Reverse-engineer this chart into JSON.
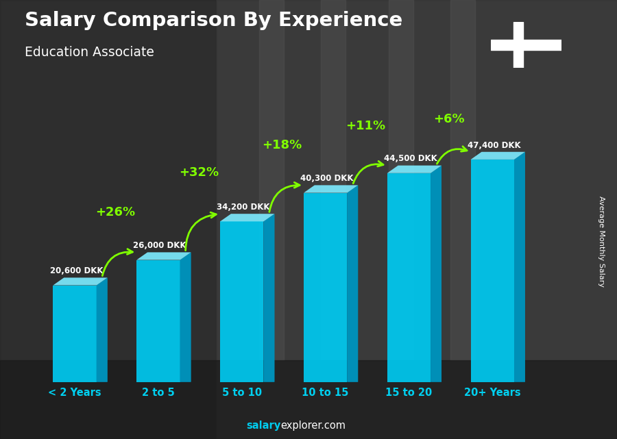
{
  "title": "Salary Comparison By Experience",
  "subtitle": "Education Associate",
  "categories": [
    "< 2 Years",
    "2 to 5",
    "5 to 10",
    "10 to 15",
    "15 to 20",
    "20+ Years"
  ],
  "values": [
    20600,
    26000,
    34200,
    40300,
    44500,
    47400
  ],
  "labels": [
    "20,600 DKK",
    "26,000 DKK",
    "34,200 DKK",
    "40,300 DKK",
    "44,500 DKK",
    "47,400 DKK"
  ],
  "pct_changes": [
    "+26%",
    "+32%",
    "+18%",
    "+11%",
    "+6%"
  ],
  "bar_front": "#00c8ef",
  "bar_top": "#7ae4f7",
  "bar_right": "#0090b8",
  "bar_edge": "#005577",
  "bg_color": "#3a3a3a",
  "text_white": "#ffffff",
  "text_green": "#80ff00",
  "ylabel": "Average Monthly Salary",
  "footer_bold": "salary",
  "footer_normal": "explorer.com",
  "ylim_max": 58000,
  "flag_red": "#C60C30",
  "flag_white": "#ffffff"
}
